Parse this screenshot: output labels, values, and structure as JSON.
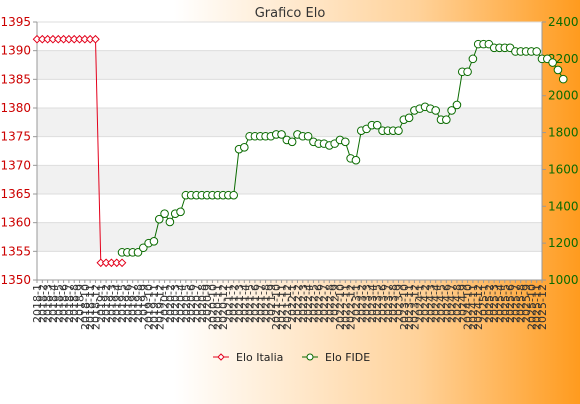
{
  "chart_data": {
    "type": "line",
    "title": "Grafico Elo",
    "colors": {
      "italia": "#e3001b",
      "fide": "#0a6b00",
      "left_axis_text": "#cc0000",
      "right_axis_text": "#0a6b00",
      "band": "#f1f1f1",
      "grid": "#dddddd"
    },
    "y_left": {
      "min": 1350,
      "max": 1395,
      "ticks": [
        1350,
        1355,
        1360,
        1365,
        1370,
        1375,
        1380,
        1385,
        1390,
        1395
      ]
    },
    "y_right": {
      "min": 1000,
      "max": 2400,
      "ticks": [
        1000,
        1200,
        1400,
        1600,
        1800,
        2000,
        2200,
        2400
      ]
    },
    "x_labels": [
      "2018-1",
      "2018-2",
      "2018-3",
      "2018-4",
      "2018-5",
      "2018-6",
      "2018-7",
      "2018-8",
      "2018-9",
      "2018-10",
      "2018-11",
      "2018-12",
      "2019-1",
      "2019-2",
      "2019-3",
      "2019-4",
      "2019-5",
      "2019-6",
      "2019-7",
      "2019-8",
      "2019-9",
      "2019-10",
      "2019-11",
      "2019-12",
      "2020-1",
      "2020-2",
      "2020-3",
      "2020-4",
      "2020-5",
      "2020-6",
      "2020-7",
      "2020-8",
      "2020-9",
      "2020-10",
      "2020-11",
      "2020-12",
      "2021-1",
      "2021-2",
      "2021-3",
      "2021-4",
      "2021-5",
      "2021-6",
      "2021-7",
      "2021-8",
      "2021-9",
      "2021-10",
      "2021-11",
      "2021-12",
      "2022-1",
      "2022-2",
      "2022-3",
      "2022-4",
      "2022-5",
      "2022-6",
      "2022-7",
      "2022-8",
      "2022-9",
      "2022-10",
      "2022-11",
      "2022-12",
      "2023-1",
      "2023-2",
      "2023-3",
      "2023-4",
      "2023-5",
      "2023-6",
      "2023-7",
      "2023-8",
      "2023-9",
      "2023-10",
      "2023-11",
      "2023-12",
      "2024-1",
      "2024-2",
      "2024-3",
      "2024-4",
      "2024-5",
      "2024-6",
      "2024-7",
      "2024-8",
      "2024-9",
      "2024-10",
      "2024-11",
      "2024-12",
      "2025-1",
      "2025-2",
      "2025-3",
      "2025-4",
      "2025-5",
      "2025-6",
      "2025-7",
      "2025-8",
      "2025-9",
      "2025-10",
      "2025-11",
      "2025-12"
    ],
    "series": [
      {
        "name": "Elo Italia",
        "axis": "left",
        "marker": "diamond",
        "values": [
          1392,
          1392,
          1392,
          1392,
          1392,
          1392,
          1392,
          1392,
          1392,
          1392,
          1392,
          1392,
          1353,
          1353,
          1353,
          1353,
          1353
        ]
      },
      {
        "name": "Elo FIDE",
        "axis": "right",
        "marker": "circle",
        "start_index": 16,
        "values": [
          1150,
          1150,
          1150,
          1150,
          1175,
          1200,
          1210,
          1330,
          1360,
          1315,
          1360,
          1370,
          1460,
          1460,
          1460,
          1460,
          1460,
          1460,
          1460,
          1460,
          1460,
          1460,
          1710,
          1720,
          1780,
          1780,
          1780,
          1780,
          1780,
          1790,
          1790,
          1760,
          1750,
          1790,
          1780,
          1780,
          1750,
          1740,
          1740,
          1730,
          1740,
          1760,
          1750,
          1660,
          1650,
          1810,
          1820,
          1840,
          1840,
          1810,
          1810,
          1810,
          1810,
          1870,
          1880,
          1920,
          1930,
          1940,
          1930,
          1920,
          1870,
          1870,
          1920,
          1950,
          2130,
          2130,
          2200,
          2280,
          2280,
          2280,
          2260,
          2260,
          2260,
          2260,
          2240,
          2240,
          2240,
          2240,
          2240,
          2200,
          2200,
          2180,
          2140,
          2090
        ]
      }
    ],
    "legend": {
      "position": "bottom-center"
    },
    "grid": true
  }
}
